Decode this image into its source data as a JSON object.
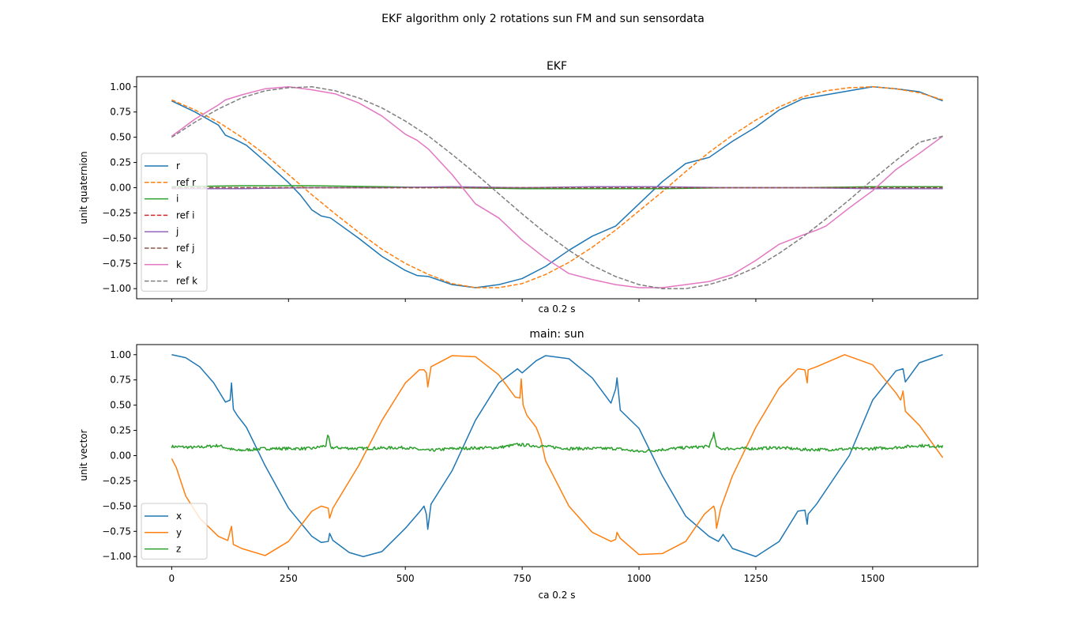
{
  "figure": {
    "title": "EKF algorithm only 2 rotations sun FM and sun sensordata"
  },
  "chart_data": [
    {
      "type": "line",
      "title": "EKF",
      "xlabel": "ca 0.2 s",
      "ylabel": "unit quaternion",
      "xlim": [
        -75,
        1725
      ],
      "ylim": [
        -1.1,
        1.1
      ],
      "x_tick_labels_shown": false,
      "xticks": [
        0,
        250,
        500,
        750,
        1000,
        1250,
        1500
      ],
      "yticks": [
        -1.0,
        -0.75,
        -0.5,
        -0.25,
        0.0,
        0.25,
        0.5,
        0.75,
        1.0
      ],
      "ytick_labels": [
        "−1.00",
        "−0.75",
        "−0.50",
        "−0.25",
        "0.00",
        "0.25",
        "0.50",
        "0.75",
        "1.00"
      ],
      "grid": false,
      "legend_position": "lower-left",
      "series": [
        {
          "name": "r",
          "style": "solid",
          "color": "#1f77b4",
          "x": [
            0,
            50,
            100,
            115,
            135,
            160,
            200,
            250,
            275,
            300,
            320,
            340,
            400,
            450,
            500,
            525,
            550,
            600,
            650,
            700,
            750,
            800,
            850,
            900,
            950,
            1000,
            1050,
            1100,
            1150,
            1200,
            1250,
            1300,
            1350,
            1400,
            1450,
            1500,
            1550,
            1600,
            1650
          ],
          "y": [
            0.86,
            0.75,
            0.62,
            0.52,
            0.48,
            0.42,
            0.26,
            0.05,
            -0.07,
            -0.22,
            -0.28,
            -0.3,
            -0.5,
            -0.68,
            -0.82,
            -0.87,
            -0.88,
            -0.96,
            -0.99,
            -0.96,
            -0.9,
            -0.78,
            -0.62,
            -0.48,
            -0.38,
            -0.16,
            0.06,
            0.24,
            0.3,
            0.46,
            0.6,
            0.77,
            0.88,
            0.92,
            0.96,
            1.0,
            0.98,
            0.95,
            0.86
          ]
        },
        {
          "name": "ref r",
          "style": "dashed",
          "color": "#ff7f0e",
          "x": [
            0,
            50,
            100,
            150,
            200,
            250,
            300,
            350,
            400,
            450,
            500,
            550,
            600,
            650,
            700,
            750,
            800,
            850,
            900,
            950,
            1000,
            1050,
            1100,
            1150,
            1200,
            1250,
            1300,
            1350,
            1400,
            1450,
            1500,
            1550,
            1600,
            1650
          ],
          "y": [
            0.87,
            0.77,
            0.65,
            0.5,
            0.33,
            0.13,
            -0.07,
            -0.26,
            -0.44,
            -0.61,
            -0.75,
            -0.86,
            -0.95,
            -0.99,
            -0.99,
            -0.95,
            -0.86,
            -0.74,
            -0.59,
            -0.42,
            -0.23,
            -0.04,
            0.16,
            0.35,
            0.52,
            0.67,
            0.8,
            0.9,
            0.96,
            0.99,
            1.0,
            0.98,
            0.94,
            0.87
          ]
        },
        {
          "name": "i",
          "style": "solid",
          "color": "#2ca02c",
          "x": [
            0,
            150,
            300,
            450,
            600,
            750,
            900,
            1050,
            1200,
            1350,
            1500,
            1650
          ],
          "y": [
            0.01,
            0.02,
            0.02,
            0.01,
            0.0,
            -0.01,
            -0.01,
            -0.01,
            0.0,
            0.0,
            0.01,
            0.01
          ]
        },
        {
          "name": "ref i",
          "style": "dashed",
          "color": "#d62728",
          "x": [
            0,
            1650
          ],
          "y": [
            0.0,
            0.0
          ]
        },
        {
          "name": "j",
          "style": "solid",
          "color": "#9467bd",
          "x": [
            0,
            150,
            300,
            450,
            600,
            750,
            900,
            1050,
            1200,
            1350,
            1500,
            1650
          ],
          "y": [
            -0.01,
            -0.01,
            0.0,
            0.0,
            0.01,
            0.0,
            0.01,
            0.01,
            0.0,
            0.0,
            -0.01,
            -0.01
          ]
        },
        {
          "name": "ref j",
          "style": "dashed",
          "color": "#8c564b",
          "x": [
            0,
            1650
          ],
          "y": [
            0.0,
            0.0
          ]
        },
        {
          "name": "k",
          "style": "solid",
          "color": "#e377c2",
          "x": [
            0,
            50,
            100,
            115,
            150,
            200,
            250,
            300,
            350,
            400,
            450,
            500,
            525,
            550,
            600,
            650,
            700,
            750,
            800,
            850,
            900,
            950,
            1000,
            1050,
            1100,
            1150,
            1200,
            1250,
            1300,
            1350,
            1380,
            1400,
            1450,
            1500,
            1550,
            1600,
            1650
          ],
          "y": [
            0.51,
            0.68,
            0.82,
            0.87,
            0.92,
            0.98,
            1.0,
            0.97,
            0.93,
            0.84,
            0.71,
            0.53,
            0.47,
            0.38,
            0.13,
            -0.16,
            -0.3,
            -0.52,
            -0.7,
            -0.85,
            -0.91,
            -0.96,
            -0.99,
            -0.99,
            -0.96,
            -0.93,
            -0.86,
            -0.72,
            -0.56,
            -0.47,
            -0.42,
            -0.38,
            -0.2,
            -0.03,
            0.18,
            0.34,
            0.51
          ]
        },
        {
          "name": "ref k",
          "style": "dashed",
          "color": "#7f7f7f",
          "x": [
            0,
            50,
            100,
            150,
            200,
            250,
            300,
            350,
            400,
            450,
            500,
            550,
            600,
            650,
            700,
            750,
            800,
            850,
            900,
            950,
            1000,
            1050,
            1100,
            1150,
            1200,
            1250,
            1300,
            1350,
            1400,
            1450,
            1500,
            1550,
            1600,
            1650
          ],
          "y": [
            0.5,
            0.65,
            0.78,
            0.89,
            0.96,
            0.99,
            1.0,
            0.96,
            0.89,
            0.79,
            0.66,
            0.51,
            0.33,
            0.14,
            -0.06,
            -0.26,
            -0.45,
            -0.62,
            -0.77,
            -0.88,
            -0.96,
            -1.0,
            -1.0,
            -0.96,
            -0.89,
            -0.79,
            -0.65,
            -0.49,
            -0.31,
            -0.12,
            0.08,
            0.27,
            0.45,
            0.51
          ]
        }
      ]
    },
    {
      "type": "line",
      "title": "main: sun",
      "xlabel": "ca 0.2 s",
      "ylabel": "unit vector",
      "xlim": [
        -75,
        1725
      ],
      "ylim": [
        -1.1,
        1.1
      ],
      "xticks": [
        0,
        250,
        500,
        750,
        1000,
        1250,
        1500
      ],
      "xtick_labels": [
        "0",
        "250",
        "500",
        "750",
        "1000",
        "1250",
        "1500"
      ],
      "yticks": [
        -1.0,
        -0.75,
        -0.5,
        -0.25,
        0.0,
        0.25,
        0.5,
        0.75,
        1.0
      ],
      "ytick_labels": [
        "−1.00",
        "−0.75",
        "−0.50",
        "−0.25",
        "0.00",
        "0.25",
        "0.50",
        "0.75",
        "1.00"
      ],
      "grid": false,
      "legend_position": "lower-left",
      "series": [
        {
          "name": "x",
          "style": "solid",
          "color": "#1f77b4",
          "x": [
            0,
            30,
            60,
            90,
            115,
            125,
            128,
            132,
            140,
            160,
            200,
            250,
            300,
            320,
            335,
            338,
            345,
            380,
            410,
            450,
            500,
            530,
            540,
            545,
            548,
            555,
            600,
            650,
            700,
            740,
            750,
            780,
            800,
            850,
            900,
            940,
            950,
            953,
            960,
            1000,
            1050,
            1100,
            1150,
            1170,
            1180,
            1200,
            1250,
            1300,
            1340,
            1355,
            1360,
            1362,
            1380,
            1450,
            1500,
            1550,
            1565,
            1570,
            1600,
            1650
          ],
          "y": [
            1.0,
            0.97,
            0.88,
            0.72,
            0.53,
            0.55,
            0.72,
            0.46,
            0.4,
            0.28,
            -0.1,
            -0.52,
            -0.8,
            -0.86,
            -0.85,
            -0.77,
            -0.84,
            -0.96,
            -1.0,
            -0.95,
            -0.72,
            -0.56,
            -0.5,
            -0.58,
            -0.73,
            -0.48,
            -0.15,
            0.35,
            0.72,
            0.86,
            0.82,
            0.94,
            0.99,
            0.96,
            0.77,
            0.52,
            0.66,
            0.77,
            0.45,
            0.27,
            -0.2,
            -0.6,
            -0.8,
            -0.85,
            -0.78,
            -0.92,
            -1.0,
            -0.85,
            -0.55,
            -0.54,
            -0.68,
            -0.58,
            -0.48,
            0.0,
            0.55,
            0.84,
            0.86,
            0.73,
            0.92,
            1.0
          ]
        },
        {
          "name": "y",
          "style": "solid",
          "color": "#ff7f0e",
          "x": [
            0,
            10,
            30,
            60,
            100,
            120,
            125,
            128,
            132,
            150,
            200,
            250,
            300,
            320,
            335,
            338,
            345,
            400,
            450,
            500,
            530,
            540,
            545,
            548,
            555,
            600,
            650,
            700,
            735,
            745,
            748,
            752,
            760,
            780,
            790,
            800,
            850,
            900,
            940,
            950,
            953,
            960,
            1000,
            1050,
            1100,
            1140,
            1160,
            1163,
            1166,
            1175,
            1200,
            1250,
            1300,
            1340,
            1355,
            1360,
            1362,
            1380,
            1440,
            1500,
            1550,
            1560,
            1565,
            1570,
            1600,
            1650
          ],
          "y": [
            -0.03,
            -0.12,
            -0.4,
            -0.62,
            -0.8,
            -0.84,
            -0.75,
            -0.7,
            -0.88,
            -0.92,
            -0.99,
            -0.85,
            -0.55,
            -0.5,
            -0.52,
            -0.62,
            -0.52,
            -0.1,
            0.35,
            0.72,
            0.85,
            0.85,
            0.82,
            0.68,
            0.88,
            0.99,
            0.98,
            0.8,
            0.58,
            0.57,
            0.76,
            0.5,
            0.4,
            0.28,
            0.16,
            -0.05,
            -0.5,
            -0.76,
            -0.85,
            -0.83,
            -0.76,
            -0.82,
            -0.98,
            -0.97,
            -0.85,
            -0.58,
            -0.5,
            -0.55,
            -0.72,
            -0.52,
            -0.2,
            0.28,
            0.67,
            0.86,
            0.85,
            0.72,
            0.85,
            0.88,
            1.0,
            0.9,
            0.62,
            0.55,
            0.64,
            0.44,
            0.3,
            -0.02
          ]
        },
        {
          "name": "z",
          "style": "solid",
          "color": "#2ca02c",
          "noise": 0.015,
          "x": [
            0,
            50,
            100,
            130,
            140,
            200,
            300,
            330,
            335,
            340,
            400,
            500,
            530,
            550,
            600,
            700,
            740,
            800,
            850,
            950,
            1000,
            1100,
            1150,
            1160,
            1165,
            1170,
            1250,
            1300,
            1350,
            1400,
            1500,
            1550,
            1600,
            1650
          ],
          "y": [
            0.09,
            0.08,
            0.1,
            0.06,
            0.05,
            0.07,
            0.07,
            0.1,
            0.21,
            0.08,
            0.07,
            0.08,
            0.06,
            0.05,
            0.07,
            0.08,
            0.11,
            0.09,
            0.07,
            0.07,
            0.04,
            0.08,
            0.09,
            0.22,
            0.1,
            0.07,
            0.07,
            0.08,
            0.06,
            0.06,
            0.07,
            0.08,
            0.1,
            0.09
          ]
        }
      ]
    }
  ]
}
